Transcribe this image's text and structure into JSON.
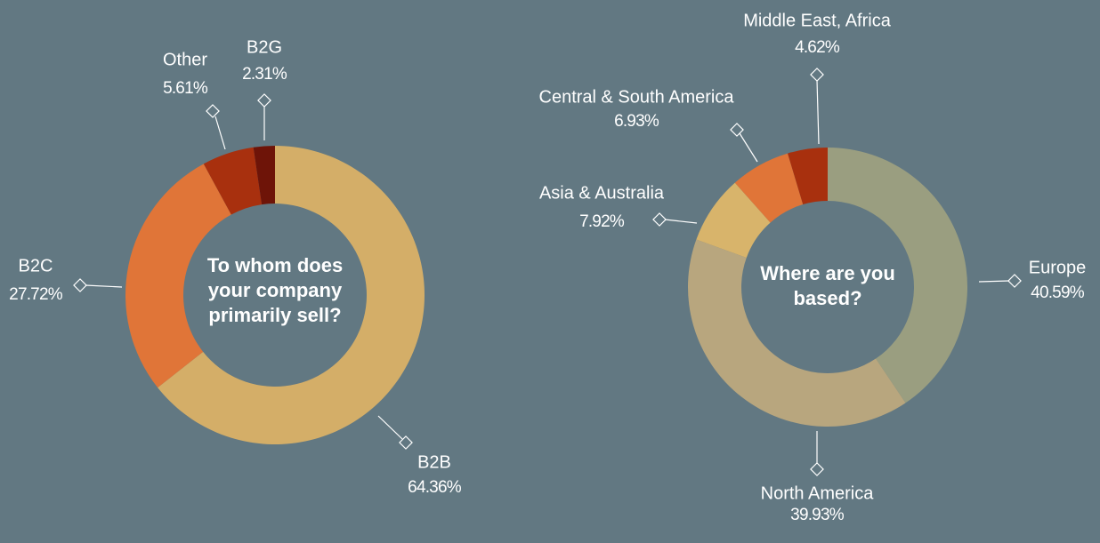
{
  "chart_data": [
    {
      "type": "pie",
      "title": "To whom does your company primarily sell?",
      "categories": [
        "B2B",
        "B2C",
        "Other",
        "B2G"
      ],
      "values": [
        64.36,
        27.72,
        5.61,
        2.31
      ],
      "value_labels": [
        "64.36%",
        "27.72%",
        "5.61%",
        "2.31%"
      ],
      "colors": [
        "#d4ae68",
        "#e07538",
        "#a8300e",
        "#6e1408"
      ]
    },
    {
      "type": "pie",
      "title": "Where are you based?",
      "categories": [
        "Europe",
        "North America",
        "Asia & Australia",
        "Central & South America",
        "Middle East, Africa"
      ],
      "values": [
        40.59,
        39.93,
        7.92,
        6.93,
        4.62
      ],
      "value_labels": [
        "40.59%",
        "39.93%",
        "7.92%",
        "6.93%",
        "4.62%"
      ],
      "colors": [
        "#9a9e80",
        "#b8a67e",
        "#d8b46b",
        "#e07538",
        "#a8300e"
      ]
    }
  ]
}
